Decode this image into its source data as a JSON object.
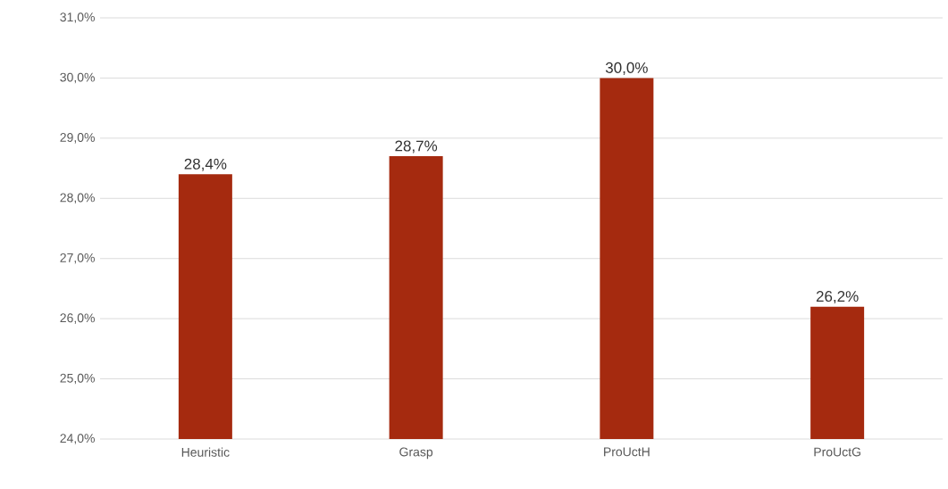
{
  "chart_data": {
    "type": "bar",
    "categories": [
      "Heuristic",
      "Grasp",
      "ProUctH",
      "ProUctG"
    ],
    "values": [
      28.4,
      28.7,
      30.0,
      26.2
    ],
    "value_labels": [
      "28,4%",
      "28,7%",
      "30,0%",
      "26,2%"
    ],
    "color": "#a52a0f",
    "ylim": [
      24,
      31
    ],
    "yticks": [
      {
        "value": 24,
        "label": "24,0%"
      },
      {
        "value": 25,
        "label": "25,0%"
      },
      {
        "value": 26,
        "label": "26,0%"
      },
      {
        "value": 27,
        "label": "27,0%"
      },
      {
        "value": 28,
        "label": "28,0%"
      },
      {
        "value": 29,
        "label": "29,0%"
      },
      {
        "value": 30,
        "label": "30,0%"
      },
      {
        "value": 31,
        "label": "31,0%"
      }
    ],
    "grid": true
  }
}
